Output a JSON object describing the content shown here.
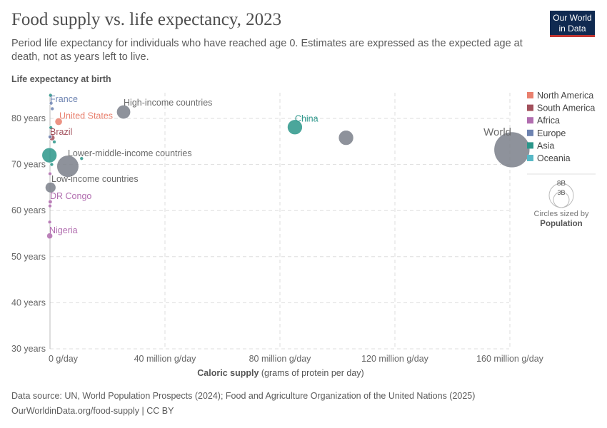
{
  "header": {
    "title": "Food supply vs. life expectancy, 2023",
    "subtitle": "Period life expectancy for individuals who have reached age 0. Estimates are expressed as the expected age at death, not as years left to live.",
    "logo": "Our World in Data"
  },
  "footer": {
    "source": "Data source: UN, World Population Prospects (2024); Food and Agriculture Organization of the United Nations (2025)",
    "url": "OurWorldinData.org/food-supply | CC BY"
  },
  "legend": {
    "items": [
      {
        "name": "North America",
        "color": "#e9806e"
      },
      {
        "name": "South America",
        "color": "#a2505c"
      },
      {
        "name": "Africa",
        "color": "#b16daf"
      },
      {
        "name": "Europe",
        "color": "#6d83b1"
      },
      {
        "name": "Asia",
        "color": "#2b968a"
      },
      {
        "name": "Oceania",
        "color": "#57b8c6"
      }
    ],
    "size_title": "Circles sized by",
    "size_var": "Population",
    "size_labels": [
      "8B",
      "3B"
    ]
  },
  "chart_data": {
    "type": "scatter",
    "ylabel": "Life expectancy at birth",
    "xlabel": "Caloric supply",
    "xlabel_unit": "(grams of protein per day)",
    "xlim": [
      0,
      170000000
    ],
    "ylim": [
      30,
      86
    ],
    "xticks": [
      {
        "v": 0,
        "label": "0 g/day"
      },
      {
        "v": 40000000,
        "label": "40 million g/day"
      },
      {
        "v": 80000000,
        "label": "80 million g/day"
      },
      {
        "v": 120000000,
        "label": "120 million g/day"
      },
      {
        "v": 160000000,
        "label": "160 million g/day"
      }
    ],
    "yticks": [
      {
        "v": 30,
        "label": "30 years"
      },
      {
        "v": 40,
        "label": "40 years"
      },
      {
        "v": 50,
        "label": "50 years"
      },
      {
        "v": 60,
        "label": "60 years"
      },
      {
        "v": 70,
        "label": "70 years"
      },
      {
        "v": 80,
        "label": "80 years"
      }
    ],
    "grid": true,
    "points": [
      {
        "label": "World",
        "x": 160700000,
        "y": 73.2,
        "pop": 8000000000,
        "color": "#7a7f8a",
        "labelColor": "#6b6b6b"
      },
      {
        "label": "",
        "x": 103000000,
        "y": 75.8,
        "pop": 1400000000,
        "color": "#7a7f8a"
      },
      {
        "label": "China",
        "x": 85200000,
        "y": 78.1,
        "pop": 1400000000,
        "color": "#2b968a"
      },
      {
        "label": "High-income countries",
        "x": 25600000,
        "y": 81.4,
        "pop": 1200000000,
        "color": "#7a7f8a",
        "labelColor": "#6b6b6b"
      },
      {
        "label": "Lower-middle-income countries",
        "x": 6200000,
        "y": 69.6,
        "pop": 3000000000,
        "color": "#7a7f8a",
        "labelColor": "#6b6b6b"
      },
      {
        "label": "Low-income countries",
        "x": 200000,
        "y": 65.0,
        "pop": 700000000,
        "color": "#7a7f8a",
        "labelColor": "#6b6b6b"
      },
      {
        "label": "United States",
        "x": 3000000,
        "y": 79.3,
        "pop": 340000000,
        "color": "#e9806e",
        "labelColor": "#e9806e"
      },
      {
        "label": "France",
        "x": 400000,
        "y": 83.3,
        "pop": 66000000,
        "color": "#6d83b1",
        "labelColor": "#6d83b1"
      },
      {
        "label": "Brazil",
        "x": 700000,
        "y": 75.8,
        "pop": 210000000,
        "color": "#a2505c",
        "labelColor": "#a2505c"
      },
      {
        "label": "",
        "x": -200000,
        "y": 72.0,
        "pop": 1400000000,
        "color": "#2b968a"
      },
      {
        "label": "DR Congo",
        "x": 100000,
        "y": 61.9,
        "pop": 100000000,
        "color": "#b16daf",
        "labelColor": "#b16daf"
      },
      {
        "label": "Nigeria",
        "x": -100000,
        "y": 54.5,
        "pop": 220000000,
        "color": "#b16daf",
        "labelColor": "#b16daf"
      },
      {
        "label": "",
        "x": 11000000,
        "y": 71.3,
        "pop": 30000000,
        "color": "#2b968a"
      },
      {
        "label": "",
        "x": 1500000,
        "y": 74.9,
        "pop": 80000000,
        "color": "#2b968a"
      },
      {
        "label": "",
        "x": 800000,
        "y": 82.1,
        "pop": 60000000,
        "color": "#6d83b1"
      },
      {
        "label": "",
        "x": 200000,
        "y": 85.0,
        "pop": 5000000,
        "color": "#2b968a"
      },
      {
        "label": "",
        "x": -100000,
        "y": 57.5,
        "pop": 20000000,
        "color": "#b16daf"
      },
      {
        "label": "",
        "x": 0,
        "y": 61,
        "pop": 30000000,
        "color": "#b16daf"
      },
      {
        "label": "",
        "x": 0,
        "y": 68,
        "pop": 40000000,
        "color": "#b16daf"
      },
      {
        "label": "",
        "x": 300000,
        "y": 78,
        "pop": 40000000,
        "color": "#2b968a"
      },
      {
        "label": "",
        "x": 600000,
        "y": 70,
        "pop": 30000000,
        "color": "#2b968a"
      },
      {
        "label": "",
        "x": 0,
        "y": 76,
        "pop": 30000000,
        "color": "#6d83b1"
      }
    ]
  }
}
